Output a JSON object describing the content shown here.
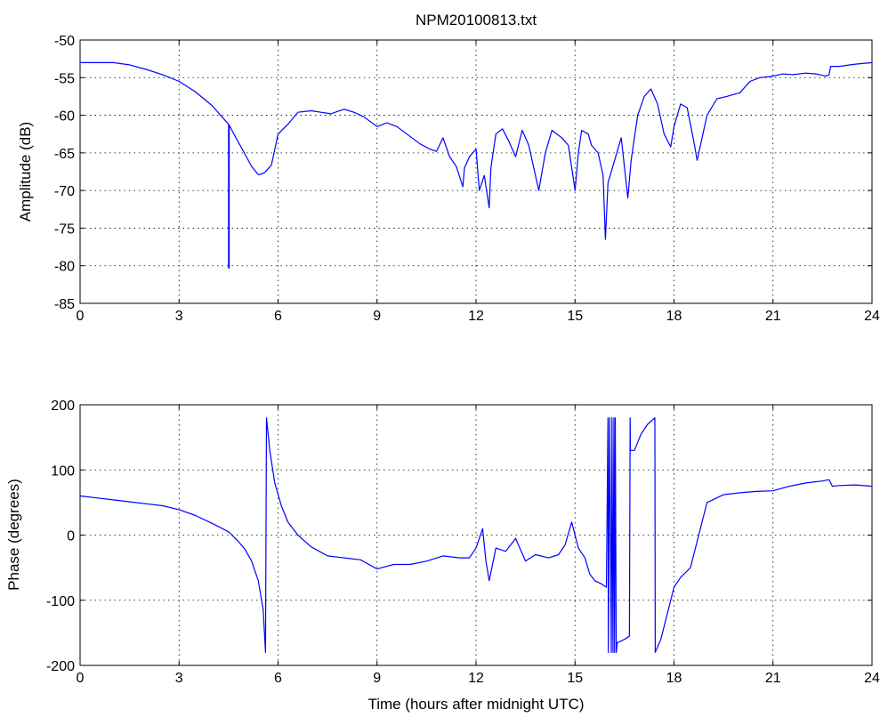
{
  "figure_title": "NPM20100813.txt",
  "line_color": "#0000ff",
  "chart_data": [
    {
      "type": "line",
      "title": "NPM20100813.txt",
      "xlabel": "",
      "ylabel": "Amplitude (dB)",
      "xlim": [
        0,
        24
      ],
      "ylim": [
        -85,
        -50
      ],
      "xticks": [
        0,
        3,
        6,
        9,
        12,
        15,
        18,
        21,
        24
      ],
      "yticks": [
        -85,
        -80,
        -75,
        -70,
        -65,
        -60,
        -55,
        -50
      ],
      "grid": true,
      "series": [
        {
          "x": [
            0,
            1,
            1.5,
            2,
            2.5,
            3,
            3.5,
            4,
            4.3,
            4.5,
            4.5,
            4.52,
            4.52,
            4.7,
            5.0,
            5.2,
            5.4,
            5.5,
            5.6,
            5.8,
            6.0,
            6.3,
            6.6,
            7.0,
            7.3,
            7.6,
            8.0,
            8.3,
            8.6,
            9.0,
            9.3,
            9.6,
            10.0,
            10.3,
            10.6,
            10.8,
            11.0,
            11.2,
            11.4,
            11.6,
            11.65,
            11.8,
            12.0,
            12.1,
            12.25,
            12.4,
            12.45,
            12.6,
            12.8,
            13.0,
            13.2,
            13.4,
            13.6,
            13.75,
            13.9,
            14.1,
            14.3,
            14.6,
            14.8,
            15.0,
            15.1,
            15.2,
            15.4,
            15.5,
            15.7,
            15.85,
            15.92,
            16.0,
            16.2,
            16.4,
            16.6,
            16.7,
            16.9,
            17.1,
            17.3,
            17.5,
            17.7,
            17.9,
            18.0,
            18.2,
            18.4,
            18.6,
            18.7,
            18.8,
            19.0,
            19.3,
            19.6,
            20.0,
            20.3,
            20.6,
            21.0,
            21.3,
            21.6,
            22.0,
            22.3,
            22.6,
            22.7,
            22.75,
            23.0,
            23.5,
            24.0
          ],
          "y": [
            -53,
            -53,
            -53.3,
            -53.9,
            -54.6,
            -55.5,
            -56.9,
            -58.7,
            -60.2,
            -61.2,
            -80.3,
            -80.3,
            -61.3,
            -62.8,
            -65.2,
            -66.8,
            -67.9,
            -67.8,
            -67.6,
            -66.6,
            -62.5,
            -61.2,
            -59.6,
            -59.4,
            -59.6,
            -59.8,
            -59.2,
            -59.6,
            -60.2,
            -61.5,
            -61.0,
            -61.5,
            -62.8,
            -63.8,
            -64.5,
            -64.8,
            -63.0,
            -65.5,
            -66.8,
            -69.5,
            -67.0,
            -65.5,
            -64.5,
            -70.0,
            -68.0,
            -72.3,
            -67.0,
            -62.5,
            -61.8,
            -63.5,
            -65.5,
            -62.0,
            -64.0,
            -67.0,
            -70.0,
            -65.0,
            -62.0,
            -63.0,
            -64.0,
            -70.0,
            -65.0,
            -62.0,
            -62.5,
            -64.0,
            -65.0,
            -68.0,
            -76.5,
            -69.0,
            -66.0,
            -63.0,
            -71.0,
            -66.0,
            -60.0,
            -57.5,
            -56.5,
            -58.5,
            -62.5,
            -64.2,
            -61.5,
            -58.5,
            -59.0,
            -63.5,
            -66.0,
            -64.0,
            -60.0,
            -57.8,
            -57.5,
            -57.0,
            -55.5,
            -55.0,
            -54.8,
            -54.5,
            -54.6,
            -54.4,
            -54.5,
            -54.8,
            -54.6,
            -53.5,
            -53.5,
            -53.2,
            -53.0
          ]
        }
      ]
    },
    {
      "type": "line",
      "title": "",
      "xlabel": "Time (hours after midnight UTC)",
      "ylabel": "Phase (degrees)",
      "xlim": [
        0,
        24
      ],
      "ylim": [
        -200,
        200
      ],
      "xticks": [
        0,
        3,
        6,
        9,
        12,
        15,
        18,
        21,
        24
      ],
      "yticks": [
        -200,
        -100,
        0,
        100,
        200
      ],
      "grid": true,
      "series": [
        {
          "x": [
            0,
            0.5,
            1,
            1.5,
            2,
            2.5,
            3,
            3.5,
            4,
            4.5,
            4.8,
            5.0,
            5.2,
            5.4,
            5.55,
            5.62,
            5.65,
            5.75,
            5.9,
            6.1,
            6.3,
            6.6,
            7.0,
            7.5,
            8.0,
            8.5,
            9.0,
            9.5,
            10.0,
            10.5,
            11.0,
            11.5,
            11.8,
            12.0,
            12.2,
            12.3,
            12.4,
            12.6,
            12.9,
            13.2,
            13.5,
            13.8,
            14.2,
            14.5,
            14.7,
            14.9,
            15.1,
            15.3,
            15.45,
            15.6,
            15.8,
            15.95,
            16.0,
            16.01,
            16.05,
            16.1,
            16.12,
            16.15,
            16.18,
            16.2,
            16.22,
            16.25,
            16.28,
            16.3,
            16.5,
            16.65,
            16.67,
            16.68,
            16.8,
            17.0,
            17.2,
            17.42,
            17.43,
            17.6,
            17.8,
            18.0,
            18.2,
            18.3,
            18.5,
            19.0,
            19.5,
            20.0,
            20.5,
            21.0,
            21.5,
            22.0,
            22.5,
            22.7,
            22.8,
            23.0,
            23.5,
            24.0
          ],
          "y": [
            60,
            57,
            54,
            51,
            48,
            45,
            39,
            30,
            18,
            5,
            -10,
            -22,
            -40,
            -70,
            -115,
            -180,
            180,
            130,
            80,
            45,
            20,
            0,
            -18,
            -32,
            -35,
            -38,
            -52,
            -45,
            -45,
            -40,
            -32,
            -35,
            -35,
            -20,
            10,
            -40,
            -70,
            -20,
            -25,
            -5,
            -40,
            -30,
            -35,
            -30,
            -15,
            20,
            -20,
            -35,
            -60,
            -70,
            -75,
            -80,
            180,
            -180,
            180,
            -180,
            180,
            -180,
            180,
            -180,
            180,
            -180,
            -165,
            -165,
            -160,
            -155,
            180,
            130,
            130,
            155,
            170,
            180,
            -180,
            -160,
            -120,
            -80,
            -65,
            -60,
            -50,
            50,
            62,
            65,
            67,
            68,
            75,
            80,
            83,
            85,
            75,
            76,
            77,
            75
          ]
        }
      ]
    }
  ]
}
